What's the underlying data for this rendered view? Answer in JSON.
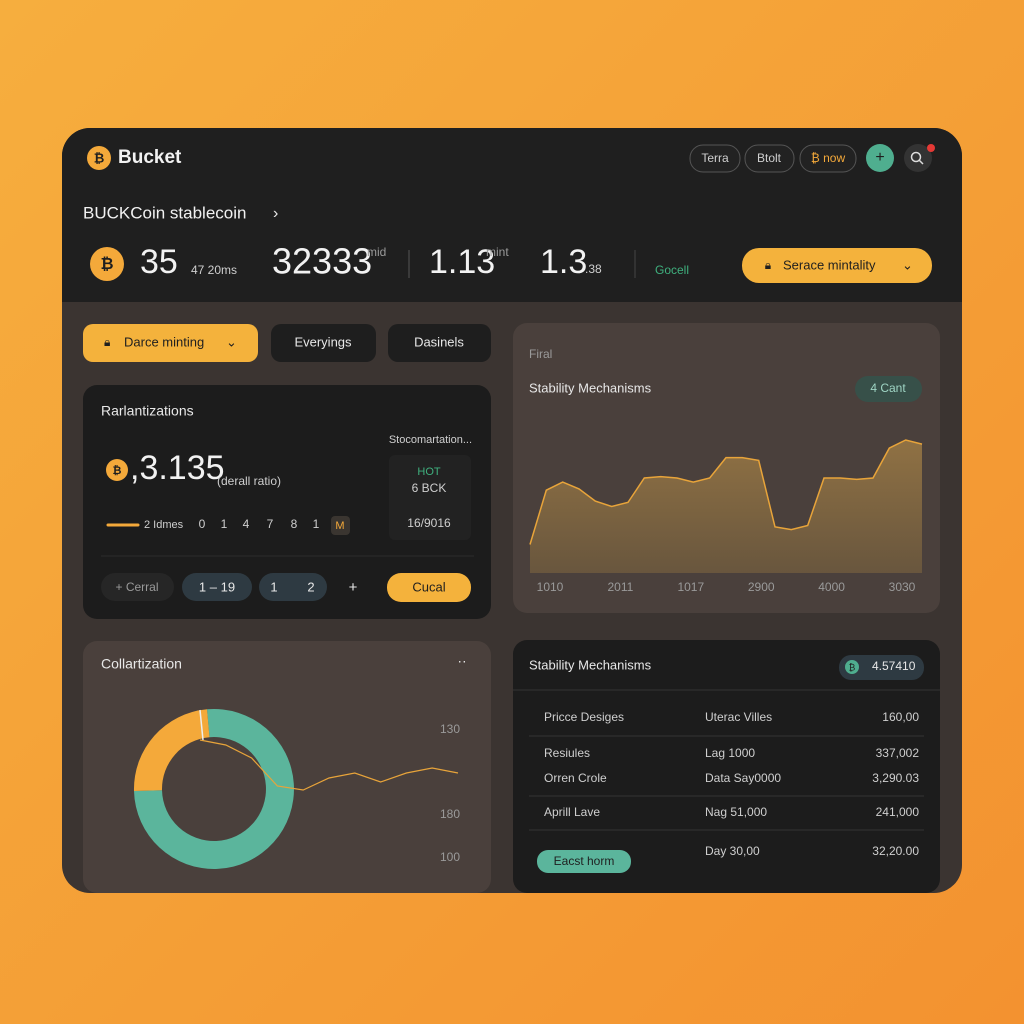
{
  "header": {
    "brand": "Bucket",
    "buttons": [
      "Terra",
      "Btolt",
      "₿ now"
    ]
  },
  "breadcrumb": "BUCKCoin stablecoin",
  "stats": {
    "s1": "35",
    "s1_sub": "47 20ms",
    "s2": "32333",
    "s2_sup": "mid",
    "s3": "1.13",
    "s3_sup": "mint",
    "s4": "1.3",
    "s4_sub": ".38",
    "status": "Gocell",
    "action": "Serace mintality"
  },
  "tabs": [
    "Darce minting",
    "Everyings",
    "Dasinels"
  ],
  "ratio_card": {
    "title": "Rarlantizations",
    "value": ",3.135",
    "value_note": "(derall ratio)",
    "side_title": "Stocomartation...",
    "side_status": "HOT",
    "side_amount": "6 BCK",
    "side_date": "16/9016",
    "legend": "2 Idmes",
    "steps": [
      "0",
      "1",
      "4",
      "7",
      "8",
      "1"
    ],
    "badge": "M",
    "controls": [
      "+ Cerral",
      "1 – 19",
      "1",
      "2",
      "+"
    ],
    "button": "Cucal"
  },
  "area_card": {
    "eyebrow": "Firal",
    "title": "Stability Mechanisms",
    "pill": "4 Cant",
    "chart": {
      "type": "area",
      "color": "#e8a43a",
      "values": [
        21,
        61,
        67,
        62,
        53,
        49,
        52,
        70,
        71,
        70,
        67,
        70,
        85,
        85,
        83,
        34,
        32,
        35,
        70,
        70,
        69,
        70,
        92,
        98,
        95
      ],
      "x_labels": [
        "1010",
        "2011",
        "1017",
        "2900",
        "4000",
        "3030"
      ]
    }
  },
  "donut_card": {
    "title": "Collartization",
    "menu": "··",
    "side_labels": [
      "130",
      "180",
      "100"
    ],
    "chart": {
      "type": "pie",
      "series": [
        {
          "name": "Collateral",
          "color": "#5bb59c",
          "value": 76
        },
        {
          "name": "Debt",
          "color": "#f4a93a",
          "value": 24
        }
      ],
      "line": {
        "color": "#e8a43a",
        "values": [
          60,
          55,
          42,
          14,
          10,
          22,
          27,
          18,
          27,
          32,
          27
        ]
      }
    }
  },
  "table_card": {
    "title": "Stability Mechanisms",
    "pill": "4.57410",
    "rows": [
      [
        "Pricce Desiges",
        "Uterac Villes",
        "160,00"
      ],
      [
        "Resiules",
        "Lag 1000",
        "337,002"
      ],
      [
        "Orren Crole",
        "Data Say0000",
        "3,290.03"
      ],
      [
        "Aprill Lave",
        "Nag 51,000",
        "241,000"
      ],
      [
        "Eacst horm",
        "Day 30,00",
        "32,20.00"
      ]
    ]
  }
}
